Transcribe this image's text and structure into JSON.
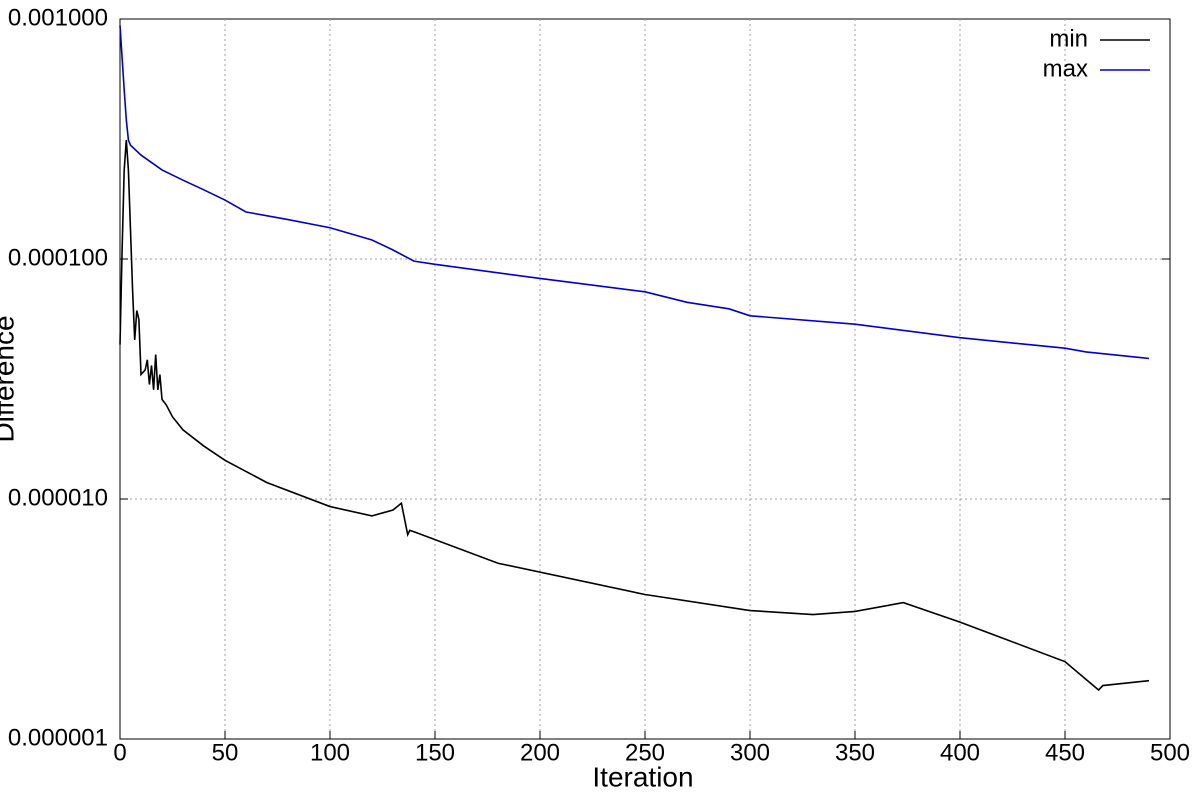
{
  "chart_data": {
    "type": "line",
    "x_label": "Iteration",
    "y_label": "Difference",
    "log_y": true,
    "grid": true,
    "legend": "top-right",
    "xlim": [
      0,
      500
    ],
    "xticks": [
      0,
      50,
      100,
      150,
      200,
      250,
      300,
      350,
      400,
      450,
      500
    ],
    "ylim": [
      1e-06,
      0.001
    ],
    "yticks": [
      {
        "value": 1e-06,
        "label": "0.000001"
      },
      {
        "value": 1e-05,
        "label": "0.000010"
      },
      {
        "value": 0.0001,
        "label": "0.000100"
      },
      {
        "value": 0.001,
        "label": "0.001000"
      }
    ],
    "series": [
      {
        "name": "min",
        "color": "#000000",
        "x": [
          0,
          1,
          2,
          3,
          4,
          5,
          6,
          7,
          8,
          9,
          10,
          12,
          13,
          14,
          15,
          16,
          17,
          18,
          19,
          20,
          22,
          25,
          30,
          40,
          50,
          70,
          100,
          120,
          130,
          134,
          137,
          138,
          140,
          180,
          250,
          300,
          330,
          350,
          373,
          400,
          450,
          466,
          468,
          490
        ],
        "values": [
          4.4e-05,
          0.000109,
          0.000235,
          0.000313,
          0.000235,
          0.000132,
          7.4e-05,
          4.6e-05,
          6.1e-05,
          5.6e-05,
          3.3e-05,
          3.45e-05,
          3.8e-05,
          3e-05,
          3.6e-05,
          2.85e-05,
          4e-05,
          2.85e-05,
          3.3e-05,
          2.6e-05,
          2.47e-05,
          2.2e-05,
          1.94e-05,
          1.66e-05,
          1.45e-05,
          1.17e-05,
          9.3e-06,
          8.5e-06,
          9e-06,
          9.6e-06,
          7.1e-06,
          7.4e-06,
          7.3e-06,
          5.4e-06,
          4e-06,
          3.43e-06,
          3.3e-06,
          3.4e-06,
          3.7e-06,
          3.07e-06,
          2.1e-06,
          1.6e-06,
          1.67e-06,
          1.75e-06
        ]
      },
      {
        "name": "max",
        "color": "#0000cc",
        "x": [
          0,
          2,
          3,
          4,
          5,
          10,
          20,
          30,
          40,
          50,
          60,
          80,
          100,
          120,
          130,
          140,
          150,
          200,
          250,
          270,
          290,
          300,
          350,
          400,
          450,
          460,
          490
        ],
        "values": [
          0.00094,
          0.000506,
          0.00038,
          0.000313,
          0.000298,
          0.000271,
          0.000235,
          0.000213,
          0.000194,
          0.000176,
          0.000157,
          0.000146,
          0.000135,
          0.00012,
          0.000109,
          9.8e-05,
          9.5e-05,
          8.3e-05,
          7.3e-05,
          6.6e-05,
          6.2e-05,
          5.8e-05,
          5.35e-05,
          4.7e-05,
          4.25e-05,
          4.1e-05,
          3.85e-05
        ]
      }
    ]
  }
}
